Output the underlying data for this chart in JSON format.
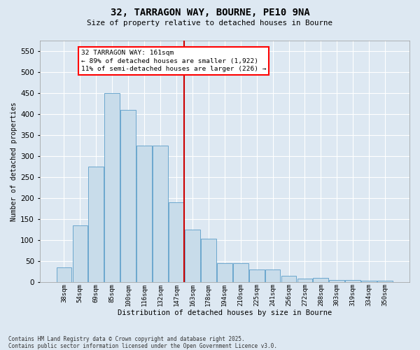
{
  "title": "32, TARRAGON WAY, BOURNE, PE10 9NA",
  "subtitle": "Size of property relative to detached houses in Bourne",
  "xlabel": "Distribution of detached houses by size in Bourne",
  "ylabel": "Number of detached properties",
  "categories": [
    "38sqm",
    "54sqm",
    "69sqm",
    "85sqm",
    "100sqm",
    "116sqm",
    "132sqm",
    "147sqm",
    "163sqm",
    "178sqm",
    "194sqm",
    "210sqm",
    "225sqm",
    "241sqm",
    "256sqm",
    "272sqm",
    "288sqm",
    "303sqm",
    "319sqm",
    "334sqm",
    "350sqm"
  ],
  "values": [
    35,
    135,
    275,
    450,
    410,
    325,
    325,
    190,
    125,
    103,
    46,
    46,
    30,
    30,
    15,
    8,
    10,
    5,
    5,
    4,
    4
  ],
  "bar_color": "#c8dcea",
  "bar_edge_color": "#5b9ec9",
  "vline_color": "#cc0000",
  "vline_bin_index": 8,
  "annotation_text": "32 TARRAGON WAY: 161sqm\n← 89% of detached houses are smaller (1,922)\n11% of semi-detached houses are larger (226) →",
  "ylim": [
    0,
    575
  ],
  "yticks": [
    0,
    50,
    100,
    150,
    200,
    250,
    300,
    350,
    400,
    450,
    500,
    550
  ],
  "bg_color": "#dde8f2",
  "grid_color": "#ffffff",
  "footer": "Contains HM Land Registry data © Crown copyright and database right 2025.\nContains public sector information licensed under the Open Government Licence v3.0."
}
